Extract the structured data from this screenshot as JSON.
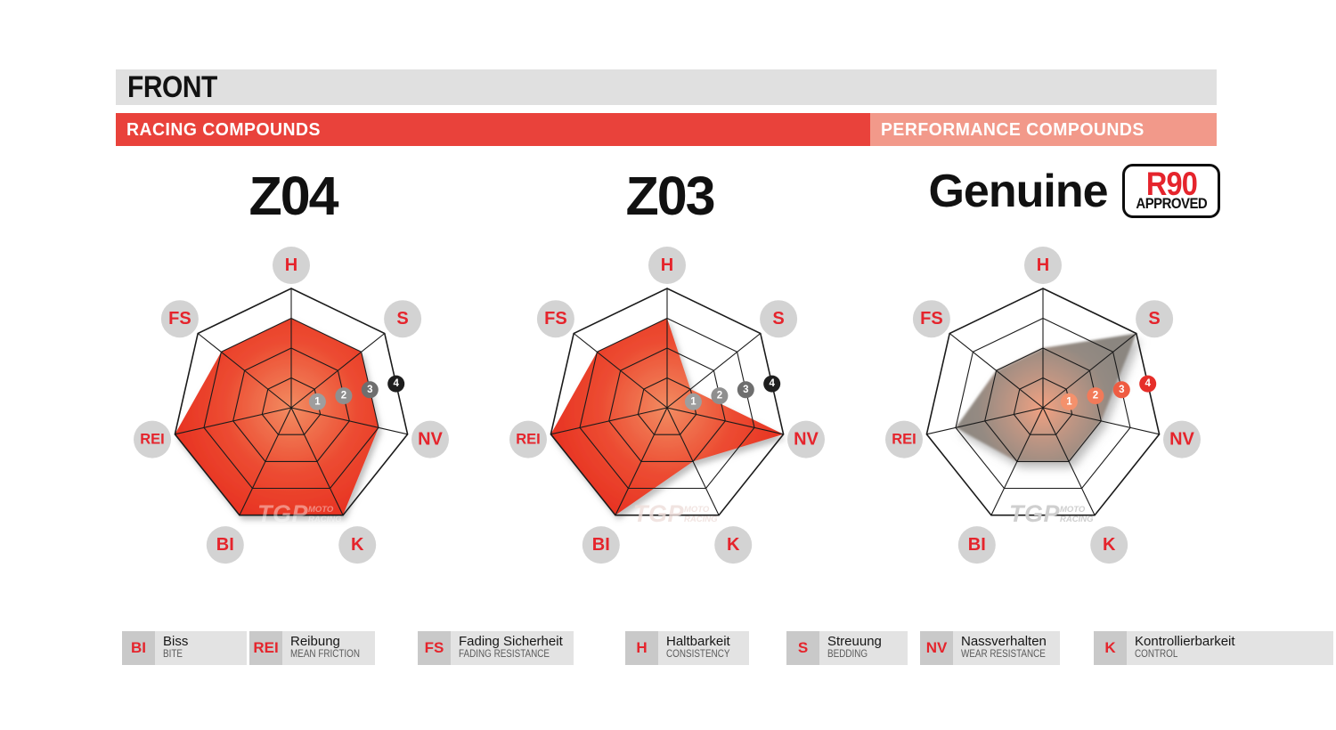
{
  "header": {
    "title": "FRONT",
    "racing_band_label": "RACING COMPOUNDS",
    "performance_band_label": "PERFORMANCE COMPOUNDS"
  },
  "colors": {
    "header_bar_gray": "#E0E0E0",
    "racing_band_red": "#E9423B",
    "performance_band_salmon": "#F2998A",
    "accent_text_red": "#E5242C",
    "grid_line": "#1B1B1B",
    "axis_circle_gray": "#D3D3D3",
    "legend_abbr_bg": "#C9C9C9",
    "legend_text_bg": "#E3E3E3"
  },
  "watermark": {
    "brand": "TGP",
    "sub_top": "MOTO",
    "sub_bottom": "RACING"
  },
  "legend": [
    {
      "abbr": "BI",
      "de": "Biss",
      "en": "BITE"
    },
    {
      "abbr": "REI",
      "de": "Reibung",
      "en": "MEAN FRICTION"
    },
    {
      "abbr": "FS",
      "de": "Fading Sicherheit",
      "en": "FADING RESISTANCE"
    },
    {
      "abbr": "H",
      "de": "Haltbarkeit",
      "en": "CONSISTENCY"
    },
    {
      "abbr": "S",
      "de": "Streuung",
      "en": "BEDDING"
    },
    {
      "abbr": "NV",
      "de": "Nassverhalten",
      "en": "WEAR RESISTANCE"
    },
    {
      "abbr": "K",
      "de": "Kontrollierbarkeit",
      "en": "CONTROL"
    }
  ],
  "chart_data": {
    "type": "radar",
    "axes_order": [
      "H",
      "S",
      "NV",
      "K",
      "BI",
      "REI",
      "FS"
    ],
    "scale": [
      1,
      2,
      3,
      4
    ],
    "scale_max": 4,
    "charts": [
      {
        "id": "z04",
        "title": "Z04",
        "category": "RACING COMPOUNDS",
        "values": {
          "H": 3,
          "S": 3,
          "NV": 3,
          "K": 4,
          "BI": 4,
          "REI": 4,
          "FS": 3
        },
        "fill": "red",
        "fill_gradient": [
          [
            "0%",
            "#F28C62"
          ],
          [
            "55%",
            "#EC4B31"
          ],
          [
            "100%",
            "#E73021"
          ]
        ],
        "marker_colors": [
          "#9E9E9E",
          "#8F8F8F",
          "#6E6E6E",
          "#1E1E1E"
        ],
        "watermark_color": "rgba(255,255,255,0.42)"
      },
      {
        "id": "z03",
        "title": "Z03",
        "category": "RACING COMPOUNDS",
        "values": {
          "H": 3,
          "S": 1,
          "NV": 4,
          "K": 2,
          "BI": 4,
          "REI": 4,
          "FS": 3
        },
        "fill": "red",
        "fill_gradient": [
          [
            "0%",
            "#F28C62"
          ],
          [
            "55%",
            "#EC4B31"
          ],
          [
            "100%",
            "#E73021"
          ]
        ],
        "marker_colors": [
          "#9E9E9E",
          "#8F8F8F",
          "#6E6E6E",
          "#1E1E1E"
        ],
        "watermark_color": "rgba(237,221,217,0.8)"
      },
      {
        "id": "genuine",
        "title": "Genuine",
        "category": "PERFORMANCE COMPOUNDS",
        "badge": {
          "top": "R90",
          "bottom": "APPROVED"
        },
        "values": {
          "H": 2,
          "S": 4,
          "NV": 2,
          "K": 2,
          "BI": 2,
          "REI": 3,
          "FS": 2
        },
        "fill": "gray",
        "fill_gradient": [
          [
            "0%",
            "#F2A181"
          ],
          [
            "35%",
            "#BD9583"
          ],
          [
            "70%",
            "#948A82"
          ],
          [
            "100%",
            "#8B8680"
          ]
        ],
        "marker_colors": [
          "#F4916C",
          "#F27A59",
          "#EF5C42",
          "#E62E29"
        ],
        "watermark_color": "#CFCFCF"
      }
    ]
  }
}
